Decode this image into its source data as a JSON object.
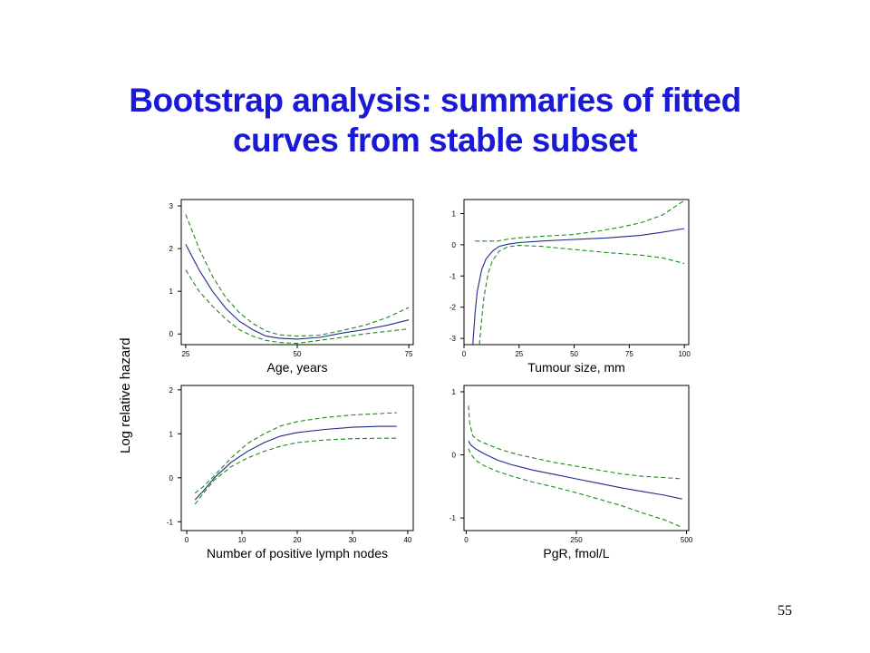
{
  "slide": {
    "title_line1": "Bootstrap analysis: summaries of fitted",
    "title_line2": "curves from stable subset",
    "page_number": "55"
  },
  "chart_data": [
    {
      "type": "line",
      "ylabel": "Log relative hazard",
      "xlabel": "Age, years",
      "xlim": [
        24,
        76
      ],
      "ylim": [
        -0.25,
        3.15
      ],
      "xticks": [
        25,
        50,
        75
      ],
      "yticks": [
        0,
        1,
        2,
        3
      ],
      "series": [
        {
          "style": "solid",
          "color": "#1f2a8c",
          "x": [
            25,
            28,
            31,
            34,
            37,
            40,
            43,
            46,
            50,
            55,
            60,
            65,
            70,
            75
          ],
          "y": [
            2.1,
            1.5,
            1.0,
            0.6,
            0.3,
            0.1,
            -0.05,
            -0.1,
            -0.12,
            -0.08,
            0.02,
            0.1,
            0.2,
            0.33
          ]
        },
        {
          "style": "dashed",
          "color": "#1a8a1a",
          "x": [
            25,
            28,
            31,
            34,
            37,
            40,
            43,
            46,
            50,
            55,
            60,
            65,
            70,
            75
          ],
          "y": [
            2.8,
            2.0,
            1.35,
            0.85,
            0.5,
            0.25,
            0.07,
            -0.02,
            -0.05,
            -0.03,
            0.08,
            0.2,
            0.38,
            0.62
          ]
        },
        {
          "style": "dashed",
          "color": "#1a8a1a",
          "x": [
            25,
            28,
            31,
            34,
            37,
            40,
            43,
            46,
            50,
            55,
            60,
            65,
            70,
            75
          ],
          "y": [
            1.5,
            1.0,
            0.65,
            0.35,
            0.1,
            -0.05,
            -0.15,
            -0.2,
            -0.22,
            -0.15,
            -0.08,
            0.0,
            0.06,
            0.12
          ]
        }
      ]
    },
    {
      "type": "line",
      "xlabel": "Tumour size, mm",
      "xlim": [
        0,
        102
      ],
      "ylim": [
        -3.2,
        1.45
      ],
      "xticks": [
        0,
        25,
        50,
        75,
        100
      ],
      "yticks": [
        -3,
        -2,
        -1,
        0,
        1
      ],
      "series": [
        {
          "style": "solid",
          "color": "#1f2a8c",
          "x": [
            4,
            5,
            6,
            8,
            10,
            13,
            16,
            20,
            25,
            35,
            50,
            65,
            80,
            90,
            100
          ],
          "y": [
            -3.2,
            -2.2,
            -1.5,
            -0.8,
            -0.45,
            -0.2,
            -0.05,
            0.02,
            0.07,
            0.12,
            0.17,
            0.22,
            0.3,
            0.4,
            0.52
          ]
        },
        {
          "style": "dashed",
          "color": "#1a8a1a",
          "x": [
            5,
            10,
            15,
            20,
            25,
            35,
            50,
            60,
            70,
            80,
            90,
            100
          ],
          "y": [
            0.12,
            0.12,
            0.12,
            0.18,
            0.22,
            0.27,
            0.33,
            0.43,
            0.55,
            0.7,
            0.95,
            1.42
          ]
        },
        {
          "style": "dashed",
          "color": "#1a8a1a",
          "x": [
            7,
            8,
            9,
            11,
            13,
            16,
            20,
            25,
            35,
            50,
            65,
            80,
            90,
            100
          ],
          "y": [
            -3.2,
            -2.4,
            -1.7,
            -0.9,
            -0.5,
            -0.2,
            -0.06,
            -0.02,
            -0.05,
            -0.15,
            -0.25,
            -0.33,
            -0.42,
            -0.6
          ]
        }
      ]
    },
    {
      "type": "line",
      "xlabel": "Number of positive lymph nodes",
      "xlim": [
        -1,
        41
      ],
      "ylim": [
        -1.2,
        2.1
      ],
      "xticks": [
        0,
        10,
        20,
        30,
        40
      ],
      "yticks": [
        -1,
        0,
        1,
        2
      ],
      "series": [
        {
          "style": "solid",
          "color": "#1f2a8c",
          "x": [
            1.5,
            3,
            5,
            8,
            11,
            14,
            17,
            20,
            25,
            30,
            35,
            38
          ],
          "y": [
            -0.5,
            -0.3,
            0.0,
            0.35,
            0.6,
            0.8,
            0.95,
            1.03,
            1.1,
            1.15,
            1.17,
            1.17
          ]
        },
        {
          "style": "dashed",
          "color": "#1a8a1a",
          "x": [
            1.5,
            3,
            5,
            8,
            11,
            14,
            17,
            20,
            25,
            30,
            35,
            38
          ],
          "y": [
            -0.35,
            -0.2,
            0.05,
            0.45,
            0.78,
            1.0,
            1.18,
            1.28,
            1.37,
            1.43,
            1.46,
            1.48
          ]
        },
        {
          "style": "dashed",
          "color": "#1a8a1a",
          "x": [
            1.5,
            3,
            5,
            8,
            11,
            14,
            17,
            20,
            25,
            30,
            35,
            38
          ],
          "y": [
            -0.6,
            -0.35,
            -0.05,
            0.25,
            0.45,
            0.6,
            0.72,
            0.8,
            0.86,
            0.89,
            0.9,
            0.9
          ]
        }
      ]
    },
    {
      "type": "line",
      "xlabel": "PgR, fmol/L",
      "xlim": [
        -5,
        505
      ],
      "ylim": [
        -1.2,
        1.1
      ],
      "xticks": [
        0,
        250,
        500
      ],
      "yticks": [
        -1,
        0,
        1
      ],
      "series": [
        {
          "style": "solid",
          "color": "#1f2a8c",
          "x": [
            5,
            10,
            20,
            40,
            70,
            100,
            150,
            200,
            250,
            300,
            350,
            400,
            450,
            490
          ],
          "y": [
            0.22,
            0.16,
            0.1,
            0.02,
            -0.08,
            -0.15,
            -0.24,
            -0.31,
            -0.38,
            -0.45,
            -0.52,
            -0.58,
            -0.64,
            -0.7
          ]
        },
        {
          "style": "dashed",
          "color": "#1a8a1a",
          "x": [
            5,
            8,
            15,
            30,
            50,
            80,
            120,
            160,
            200,
            250,
            300,
            350,
            400,
            450,
            490
          ],
          "y": [
            0.78,
            0.5,
            0.3,
            0.22,
            0.16,
            0.08,
            0.0,
            -0.06,
            -0.12,
            -0.18,
            -0.24,
            -0.3,
            -0.34,
            -0.36,
            -0.38
          ]
        },
        {
          "style": "dashed",
          "color": "#1a8a1a",
          "x": [
            5,
            10,
            20,
            40,
            70,
            100,
            150,
            200,
            250,
            300,
            350,
            400,
            450,
            490
          ],
          "y": [
            0.1,
            0.02,
            -0.08,
            -0.17,
            -0.26,
            -0.33,
            -0.43,
            -0.51,
            -0.6,
            -0.7,
            -0.8,
            -0.92,
            -1.03,
            -1.15
          ]
        }
      ]
    }
  ]
}
